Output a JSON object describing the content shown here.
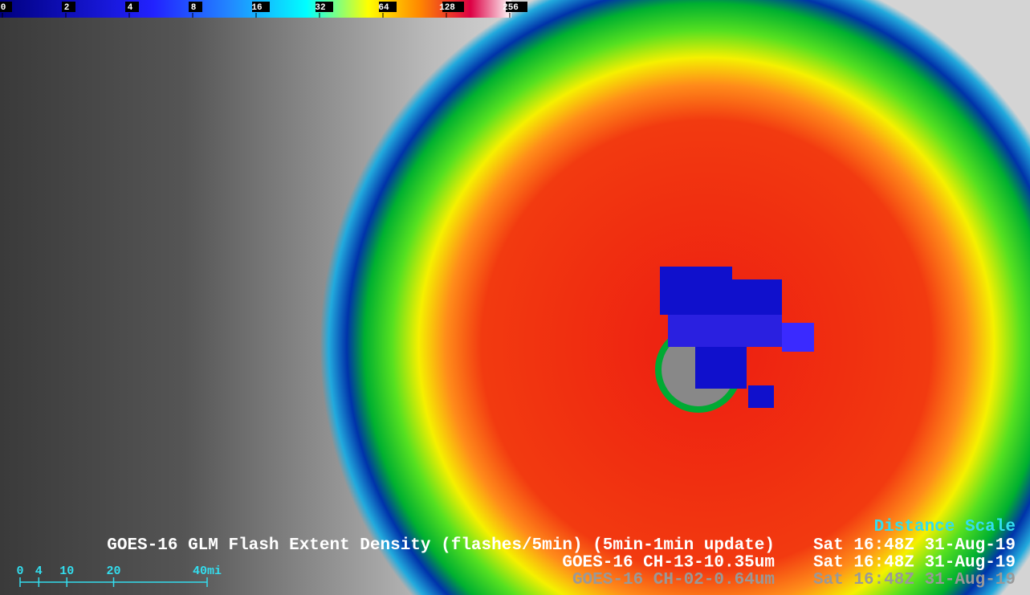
{
  "colorbar": {
    "ticks": [
      0,
      2,
      4,
      8,
      16,
      32,
      64,
      128,
      256
    ]
  },
  "legend": {
    "title": "Distance Scale",
    "lines": [
      {
        "product": "GOES-16 GLM Flash Extent Density (flashes/5min) (5min-1min update)",
        "time": "Sat 16:48Z 31-Aug-19"
      },
      {
        "product": "GOES-16 CH-13-10.35um",
        "time": "Sat 16:48Z 31-Aug-19"
      },
      {
        "product": "GOES-16 CH-02-0.64um",
        "time": "Sat 16:48Z 31-Aug-19"
      }
    ]
  },
  "distance_scale": {
    "ticks": [
      0,
      4,
      10,
      20,
      {
        "value": 40,
        "label": "40mi"
      }
    ]
  }
}
